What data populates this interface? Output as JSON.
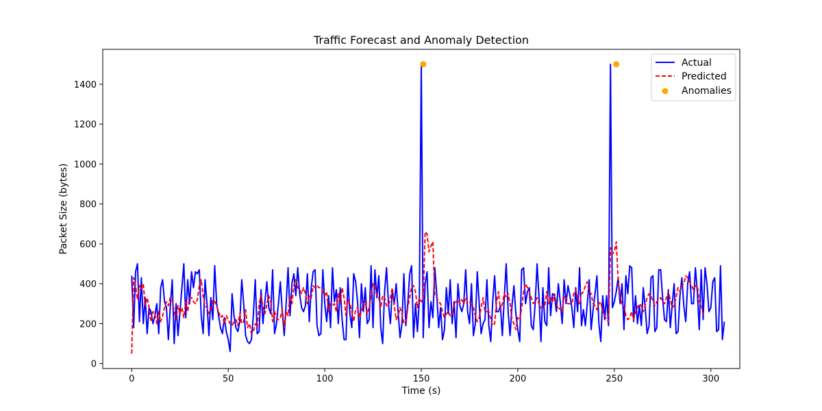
{
  "chart_data": {
    "type": "line",
    "title": "Traffic Forecast and Anomaly Detection",
    "xlabel": "Time (s)",
    "ylabel": "Packet Size (bytes)",
    "xlim": [
      -15,
      315
    ],
    "ylim": [
      -25,
      1575
    ],
    "xticks": [
      0,
      50,
      100,
      150,
      200,
      250,
      300
    ],
    "yticks": [
      0,
      200,
      400,
      600,
      800,
      1000,
      1200,
      1400
    ],
    "grid": false,
    "legend": "top-right",
    "series": [
      {
        "name": "Actual",
        "style": "solid",
        "color": "#0000ff",
        "values": [
          440,
          180,
          460,
          500,
          210,
          430,
          200,
          330,
          150,
          280,
          260,
          200,
          240,
          300,
          150,
          380,
          420,
          310,
          280,
          120,
          290,
          420,
          100,
          300,
          140,
          260,
          380,
          500,
          230,
          420,
          300,
          460,
          380,
          460,
          450,
          470,
          240,
          150,
          420,
          300,
          140,
          330,
          220,
          490,
          300,
          240,
          180,
          150,
          230,
          160,
          120,
          60,
          350,
          240,
          180,
          160,
          210,
          420,
          300,
          140,
          110,
          100,
          120,
          240,
          420,
          150,
          160,
          370,
          200,
          310,
          410,
          280,
          250,
          470,
          150,
          200,
          300,
          410,
          260,
          140,
          300,
          480,
          240,
          400,
          450,
          340,
          480,
          350,
          280,
          260,
          290,
          450,
          210,
          380,
          460,
          470,
          190,
          140,
          150,
          470,
          300,
          210,
          340,
          180,
          480,
          310,
          370,
          200,
          380,
          220,
          120,
          120,
          430,
          250,
          180,
          450,
          410,
          310,
          130,
          400,
          260,
          380,
          200,
          220,
          490,
          180,
          470,
          330,
          440,
          180,
          100,
          360,
          480,
          300,
          200,
          370,
          300,
          400,
          260,
          130,
          200,
          450,
          190,
          300,
          450,
          490,
          130,
          300,
          160,
          320,
          1500,
          130,
          400,
          460,
          180,
          310,
          230,
          480,
          350,
          180,
          280,
          120,
          170,
          380,
          250,
          420,
          200,
          310,
          130,
          400,
          290,
          260,
          300,
          470,
          260,
          200,
          400,
          140,
          200,
          460,
          300,
          150,
          200,
          220,
          420,
          190,
          110,
          310,
          440,
          260,
          260,
          290,
          140,
          330,
          500,
          260,
          140,
          290,
          390,
          250,
          170,
          110,
          470,
          480,
          300,
          360,
          380,
          190,
          170,
          300,
          500,
          330,
          110,
          380,
          210,
          190,
          480,
          240,
          350,
          340,
          260,
          400,
          310,
          200,
          420,
          300,
          390,
          340,
          280,
          180,
          380,
          260,
          480,
          190,
          270,
          190,
          300,
          420,
          170,
          270,
          350,
          440,
          200,
          110,
          340,
          220,
          340,
          190,
          1500,
          280,
          310,
          360,
          430,
          300,
          400,
          170,
          440,
          350,
          490,
          480,
          210,
          340,
          200,
          290,
          190,
          380,
          280,
          150,
          190,
          430,
          440,
          160,
          180,
          470,
          470,
          330,
          220,
          210,
          370,
          180,
          300,
          400,
          150,
          160,
          340,
          430,
          290,
          210,
          400,
          460,
          300,
          300,
          480,
          360,
          170,
          470,
          220,
          480,
          400,
          260,
          280,
          410,
          430,
          160,
          170,
          490,
          120,
          210
        ]
      },
      {
        "name": "Predicted",
        "style": "dashed",
        "color": "#ff0000",
        "values": [
          50,
          430,
          390,
          320,
          390,
          370,
          400,
          290,
          330,
          280,
          210,
          260,
          250,
          200,
          260,
          210,
          240,
          280,
          310,
          290,
          330,
          320,
          260,
          220,
          290,
          250,
          280,
          230,
          310,
          260,
          330,
          330,
          310,
          300,
          320,
          390,
          420,
          340,
          290,
          280,
          250,
          270,
          320,
          310,
          290,
          260,
          230,
          240,
          200,
          240,
          220,
          200,
          190,
          210,
          220,
          190,
          250,
          200,
          210,
          270,
          180,
          200,
          150,
          160,
          200,
          180,
          300,
          340,
          280,
          250,
          300,
          340,
          310,
          210,
          260,
          230,
          220,
          230,
          270,
          180,
          260,
          240,
          340,
          300,
          390,
          420,
          380,
          370,
          350,
          380,
          350,
          300,
          340,
          330,
          390,
          380,
          390,
          380,
          380,
          360,
          340,
          360,
          260,
          300,
          290,
          300,
          260,
          350,
          300,
          380,
          330,
          240,
          320,
          300,
          260,
          210,
          270,
          280,
          230,
          260,
          300,
          310,
          250,
          280,
          340,
          400,
          390,
          340,
          330,
          280,
          340,
          330,
          290,
          290,
          330,
          380,
          290,
          220,
          240,
          280,
          250,
          200,
          210,
          280,
          330,
          390,
          390,
          360,
          280,
          330,
          310,
          320,
          660,
          650,
          560,
          590,
          610,
          340,
          330,
          310,
          300,
          260,
          230,
          250,
          260,
          240,
          240,
          300,
          310,
          320,
          300,
          320,
          300,
          330,
          310,
          310,
          290,
          280,
          240,
          210,
          230,
          280,
          330,
          260,
          260,
          260,
          220,
          190,
          200,
          310,
          360,
          270,
          300,
          350,
          330,
          350,
          300,
          220,
          200,
          170,
          230,
          220,
          280,
          360,
          400,
          380,
          360,
          330,
          300,
          310,
          330,
          300,
          280,
          280,
          290,
          360,
          300,
          330,
          310,
          350,
          300,
          270,
          280,
          260,
          340,
          330,
          300,
          300,
          300,
          350,
          370,
          320,
          300,
          350,
          360,
          390,
          410,
          360,
          350,
          300,
          290,
          270,
          300,
          310,
          260,
          240,
          220,
          210,
          580,
          550,
          560,
          610,
          420,
          340,
          300,
          290,
          240,
          220,
          230,
          260,
          220,
          260,
          280,
          300,
          290,
          260,
          290,
          330,
          350,
          340,
          310,
          290,
          310,
          320,
          330,
          310,
          300,
          330,
          360,
          320,
          280,
          290,
          330,
          380,
          360,
          390,
          400,
          440,
          430,
          410,
          390,
          370,
          390,
          390,
          310,
          300,
          240
        ]
      }
    ],
    "anomalies": {
      "name": "Anomalies",
      "color": "#ffa500",
      "x": [
        151,
        251
      ],
      "y": [
        1500,
        1500
      ]
    }
  }
}
